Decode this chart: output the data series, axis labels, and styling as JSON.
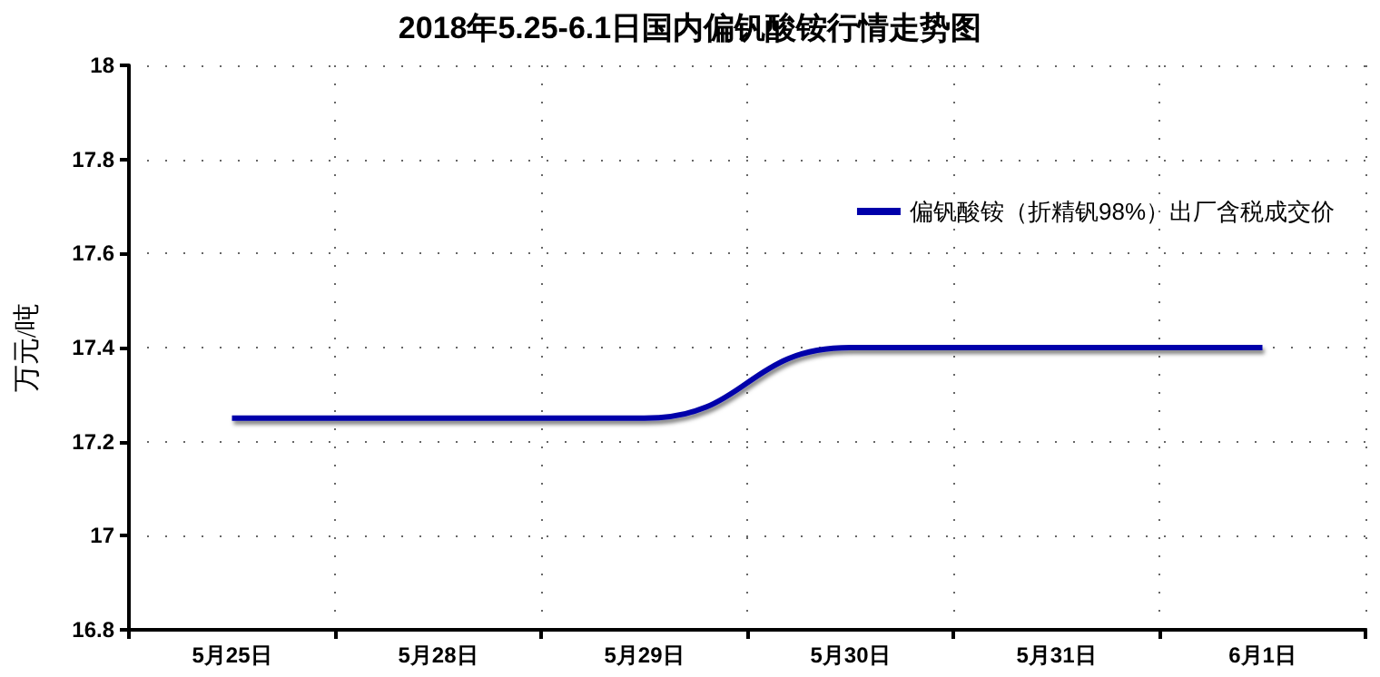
{
  "chart_data": {
    "type": "line",
    "title": "2018年5.25-6.1日国内偏钒酸铵行情走势图",
    "ylabel": "万元/吨",
    "categories": [
      "5月25日",
      "5月28日",
      "5月29日",
      "5月30日",
      "5月31日",
      "6月1日"
    ],
    "series": [
      {
        "name": "偏钒酸铵（折精钒98%）出厂含税成交价",
        "color": "#0000aa",
        "values": [
          17.25,
          17.25,
          17.25,
          17.4,
          17.4,
          17.4
        ]
      }
    ],
    "ylim": [
      16.8,
      18
    ],
    "yticks": [
      16.8,
      17,
      17.2,
      17.4,
      17.6,
      17.8,
      18
    ],
    "grid": true,
    "legend": "top right",
    "marker": "none",
    "line_style": "solid"
  }
}
